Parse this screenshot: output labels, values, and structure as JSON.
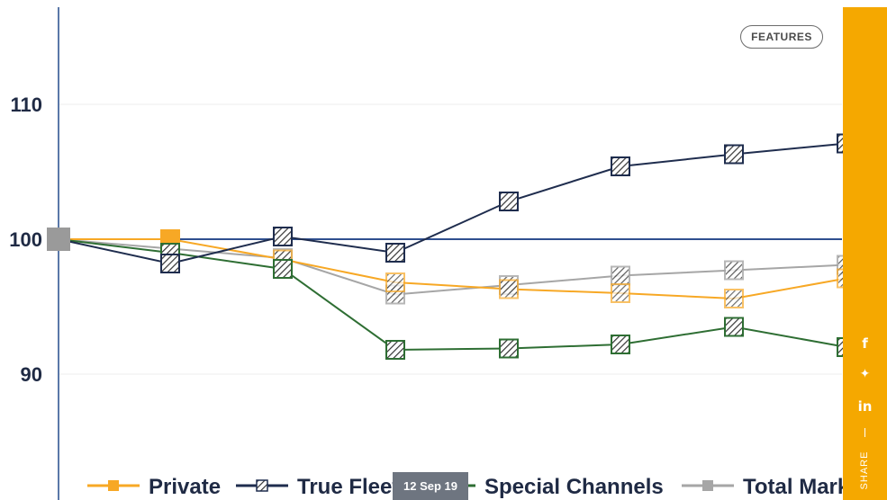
{
  "features_label": "FEATURES",
  "date_label": "12 Sep 19",
  "share": {
    "label": "SHARE",
    "accent": "#f5a800",
    "icons": [
      "facebook-icon",
      "twitter-icon",
      "linkedin-icon"
    ],
    "glyphs": {
      "facebook": "f",
      "twitter": "✦",
      "linkedin": "in"
    }
  },
  "date_badge_color": "#6e7580",
  "chart_data": {
    "type": "line",
    "x": [
      1,
      2,
      3,
      4,
      5,
      6,
      7,
      8
    ],
    "ylim": [
      80,
      117
    ],
    "yticks": [
      90,
      100,
      110
    ],
    "grid": true,
    "reference_line": 100,
    "legend_position": "bottom",
    "series": [
      {
        "name": "Private",
        "color": "#f7a825",
        "marker": "solid",
        "values": [
          100,
          100,
          98.5,
          96.8,
          96.3,
          96.0,
          95.6,
          97.1
        ]
      },
      {
        "name": "True Fleet",
        "color": "#1f2d4e",
        "marker": "hatched",
        "values": [
          100,
          98.2,
          100.2,
          99.0,
          102.8,
          105.4,
          106.3,
          107.1
        ]
      },
      {
        "name": "Special Channels",
        "color": "#2e6e33",
        "marker": "hatched",
        "values": [
          100,
          99.0,
          97.8,
          91.8,
          91.9,
          92.2,
          93.5,
          92.0
        ]
      },
      {
        "name": "Total Market",
        "color": "#a6a6a6",
        "marker": "solid",
        "values": [
          100,
          99.3,
          98.6,
          95.9,
          96.6,
          97.3,
          97.7,
          98.1
        ]
      }
    ]
  }
}
